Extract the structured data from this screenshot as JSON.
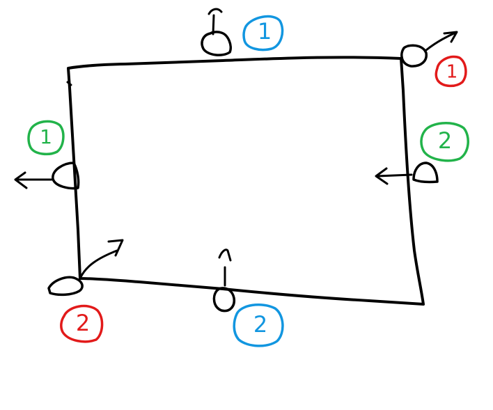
{
  "colors": {
    "ink": "#000000",
    "blue": "#1296e0",
    "red": "#e21a1a",
    "green": "#22b34a",
    "background": "#ffffff"
  },
  "labels": {
    "top": "1",
    "bottom": "2",
    "top_right_corner": "1",
    "bottom_left_corner": "2",
    "left": "1",
    "right": "2"
  },
  "icons": {
    "handle": "drag-handle-icon",
    "arrow": "arrow-icon"
  }
}
